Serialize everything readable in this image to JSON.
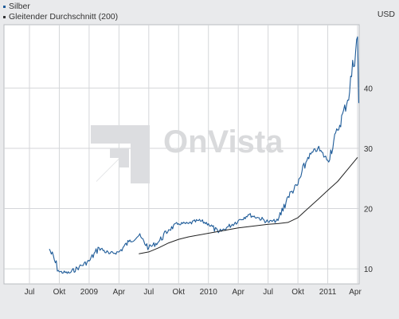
{
  "legend": [
    {
      "label": "Silber",
      "color": "#1f5c99"
    },
    {
      "label": "Gleitender Durchschnitt (200)",
      "color": "#333333"
    }
  ],
  "unit_label": "USD",
  "watermark": "OnVista",
  "chart_data": {
    "type": "line",
    "x_ticks": [
      "Jul",
      "Okt",
      "2009",
      "Apr",
      "Jul",
      "Okt",
      "2010",
      "Apr",
      "Jul",
      "Okt",
      "2011",
      "Apr"
    ],
    "xlim": [
      "2008-05",
      "2011-04"
    ],
    "y_ticks": [
      10,
      20,
      30,
      40
    ],
    "ylim": [
      7.5,
      50.5
    ],
    "grid": true,
    "legend_position": "top-left",
    "series": [
      {
        "name": "Silber",
        "color": "#1f5c99",
        "x": [
          "2008-09",
          "2008-10",
          "2008-11",
          "2008-12",
          "2009-01",
          "2009-02",
          "2009-03",
          "2009-04",
          "2009-05",
          "2009-06",
          "2009-07",
          "2009-08",
          "2009-09",
          "2009-10",
          "2009-11",
          "2009-12",
          "2010-01",
          "2010-02",
          "2010-03",
          "2010-04",
          "2010-05",
          "2010-06",
          "2010-07",
          "2010-08",
          "2010-09",
          "2010-10",
          "2010-11",
          "2010-12",
          "2011-01",
          "2011-02",
          "2011-03",
          "2011-04"
        ],
        "values": [
          13.3,
          9.5,
          9.3,
          10.3,
          11.3,
          13.5,
          12.5,
          12.8,
          14.5,
          15.5,
          13.5,
          14.5,
          16.5,
          17.5,
          17.5,
          18.0,
          17.5,
          16.0,
          17.0,
          18.0,
          19.0,
          18.5,
          17.8,
          18.0,
          22.0,
          24.0,
          28.5,
          30.0,
          28.0,
          33.0,
          38.0,
          48.5
        ]
      },
      {
        "name": "Gleitender Durchschnitt (200)",
        "color": "#222222",
        "x": [
          "2009-06",
          "2009-07",
          "2009-08",
          "2009-09",
          "2009-10",
          "2009-11",
          "2009-12",
          "2010-01",
          "2010-02",
          "2010-03",
          "2010-04",
          "2010-05",
          "2010-06",
          "2010-07",
          "2010-08",
          "2010-09",
          "2010-10",
          "2010-11",
          "2010-12",
          "2011-01",
          "2011-02",
          "2011-03",
          "2011-04"
        ],
        "values": [
          12.5,
          12.8,
          13.5,
          14.3,
          14.9,
          15.3,
          15.6,
          15.9,
          16.2,
          16.5,
          16.8,
          17.0,
          17.2,
          17.4,
          17.5,
          17.7,
          18.5,
          20.0,
          21.5,
          23.0,
          24.5,
          26.5,
          28.5
        ]
      }
    ]
  }
}
